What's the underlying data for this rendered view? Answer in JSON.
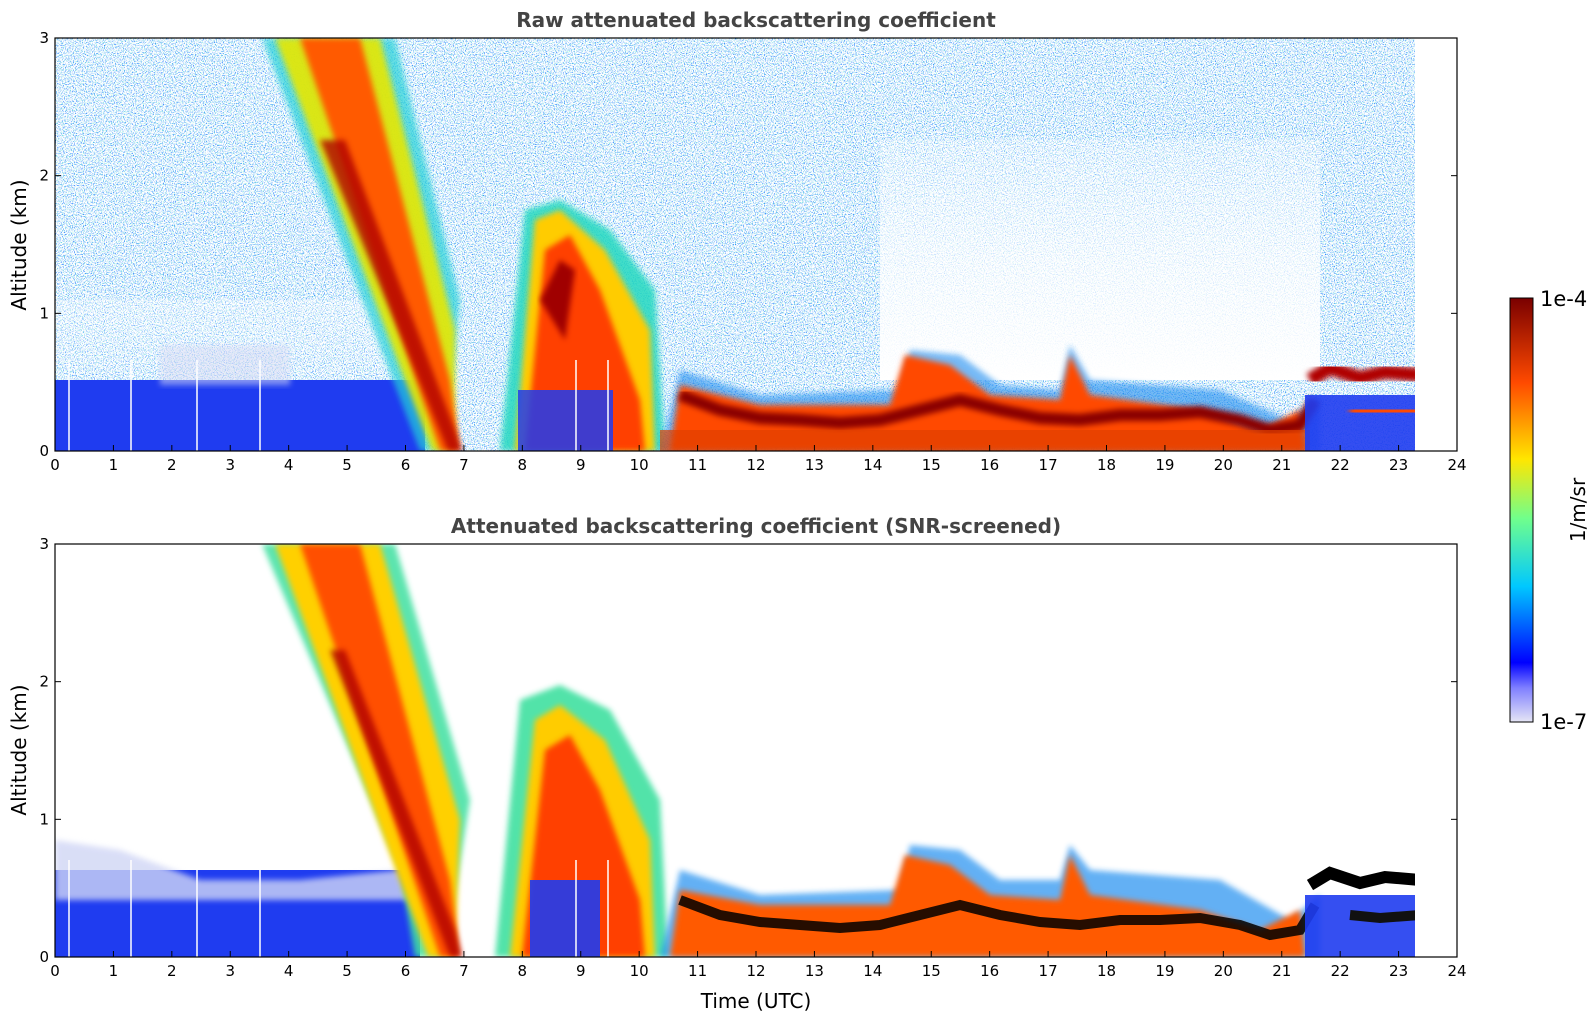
{
  "chart_data": [
    {
      "type": "heatmap",
      "title": "Raw attenuated backscattering coefficient",
      "xlabel": "",
      "ylabel": "Altitude (km)",
      "xlim": [
        0,
        24
      ],
      "ylim": [
        0,
        3
      ],
      "x_ticks": [
        "0",
        "1",
        "2",
        "3",
        "4",
        "5",
        "6",
        "7",
        "8",
        "9",
        "10",
        "11",
        "12",
        "13",
        "14",
        "15",
        "16",
        "17",
        "18",
        "19",
        "20",
        "21",
        "22",
        "23",
        "24"
      ],
      "y_ticks": [
        "0",
        "1",
        "2",
        "3"
      ],
      "screened": false,
      "features": [
        {
          "name": "descending cloud band",
          "time_start": 4.0,
          "time_end": 6.8,
          "alt_top": 3.0,
          "alt_bottom": 0.0
        },
        {
          "name": "convective column",
          "time_start": 8.0,
          "time_end": 10.6,
          "alt_top": 1.7,
          "alt_bottom": 0.0
        },
        {
          "name": "boundary layer top",
          "time_start": 10.8,
          "time_end": 23.6,
          "alt_level": 0.3
        },
        {
          "name": "elevated layer",
          "time_start": 21.8,
          "time_end": 23.6,
          "alt_level": 0.55
        }
      ]
    },
    {
      "type": "heatmap",
      "title": "Attenuated backscattering coefficient (SNR-screened)",
      "xlabel": "Time (UTC)",
      "ylabel": "Altitude (km)",
      "xlim": [
        0,
        24
      ],
      "ylim": [
        0,
        3
      ],
      "x_ticks": [
        "0",
        "1",
        "2",
        "3",
        "4",
        "5",
        "6",
        "7",
        "8",
        "9",
        "10",
        "11",
        "12",
        "13",
        "14",
        "15",
        "16",
        "17",
        "18",
        "19",
        "20",
        "21",
        "22",
        "23",
        "24"
      ],
      "y_ticks": [
        "0",
        "1",
        "2",
        "3"
      ],
      "screened": true,
      "features": [
        {
          "name": "descending cloud band",
          "time_start": 4.0,
          "time_end": 6.8,
          "alt_top": 3.0,
          "alt_bottom": 0.0
        },
        {
          "name": "convective column",
          "time_start": 8.0,
          "time_end": 10.6,
          "alt_top": 1.9,
          "alt_bottom": 0.0
        },
        {
          "name": "boundary layer top",
          "time_start": 10.8,
          "time_end": 23.6,
          "alt_level": 0.3
        },
        {
          "name": "elevated layer",
          "time_start": 21.8,
          "time_end": 23.6,
          "alt_level": 0.5
        }
      ]
    }
  ],
  "colorbar": {
    "label": "1/m/sr",
    "min_label": "1e-7",
    "max_label": "1e-4",
    "min": 1e-07,
    "max": 0.0001,
    "scale": "log",
    "colors": [
      "#e6e6f5",
      "#0000ff",
      "#00c8ff",
      "#70ff8c",
      "#ffe600",
      "#ff4a00",
      "#7a0000"
    ]
  }
}
